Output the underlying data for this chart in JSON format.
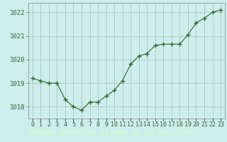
{
  "x": [
    0,
    1,
    2,
    3,
    4,
    5,
    6,
    7,
    8,
    9,
    10,
    11,
    12,
    13,
    14,
    15,
    16,
    17,
    18,
    19,
    20,
    21,
    22,
    23
  ],
  "y": [
    1019.2,
    1019.1,
    1019.0,
    1019.0,
    1018.3,
    1018.0,
    1017.85,
    1018.2,
    1018.2,
    1018.45,
    1018.7,
    1019.1,
    1019.8,
    1020.15,
    1020.25,
    1020.6,
    1020.65,
    1020.65,
    1020.65,
    1021.05,
    1021.55,
    1021.75,
    1022.0,
    1022.1
  ],
  "line_color": "#2d6a2d",
  "marker": "+",
  "marker_size": 4,
  "plot_bg": "#cceeed",
  "outer_bg": "#cceeed",
  "footer_bg": "#4a7c4a",
  "grid_color": "#aaaaaa",
  "xlabel": "Graphe pression niveau de la mer (hPa)",
  "xlabel_color": "#ccffcc",
  "xlabel_fontsize": 7.5,
  "tick_fontsize": 6.5,
  "ylim": [
    1017.5,
    1022.4
  ],
  "yticks": [
    1018,
    1019,
    1020,
    1021,
    1022
  ],
  "xtick_labels": [
    "0",
    "1",
    "2",
    "3",
    "4",
    "5",
    "6",
    "7",
    "8",
    "9",
    "10",
    "11",
    "12",
    "13",
    "14",
    "15",
    "16",
    "17",
    "18",
    "19",
    "20",
    "21",
    "22",
    "23"
  ]
}
